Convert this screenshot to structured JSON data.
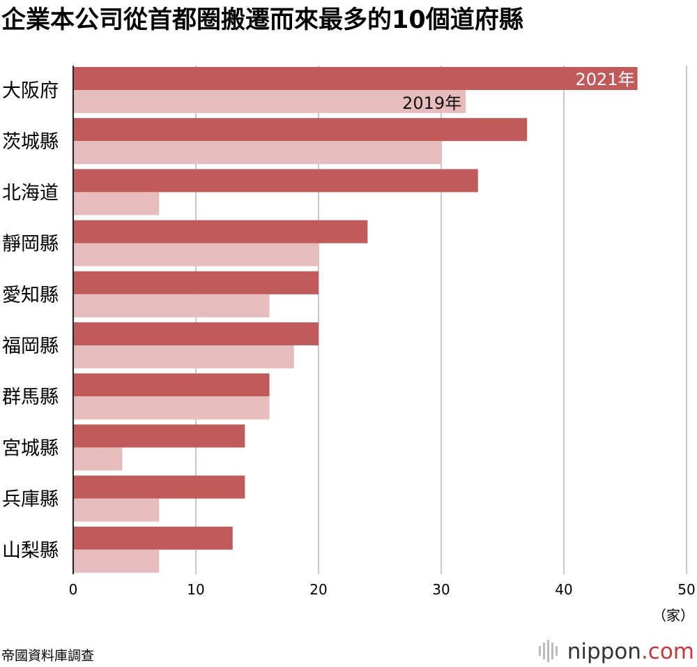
{
  "title": "企業本公司從首都圈搬遷而來最多的10個道府縣",
  "source": "帝國資料庫調查",
  "brand": {
    "name": "nippon",
    "suffix": ".com",
    "dot_color": "#c0393b"
  },
  "chart_data": {
    "type": "bar",
    "orientation": "horizontal",
    "categories": [
      "大阪府",
      "茨城縣",
      "北海道",
      "靜岡縣",
      "愛知縣",
      "福岡縣",
      "群馬縣",
      "宮城縣",
      "兵庫縣",
      "山梨縣"
    ],
    "series": [
      {
        "name": "2021年",
        "color": "#c05b5b",
        "values": [
          46,
          37,
          33,
          24,
          20,
          20,
          16,
          14,
          14,
          13
        ]
      },
      {
        "name": "2019年",
        "color": "#e6bcbc",
        "values": [
          32,
          30,
          7,
          20,
          16,
          18,
          16,
          4,
          7,
          7
        ]
      }
    ],
    "xlim": [
      0,
      50
    ],
    "xticks": [
      0,
      10,
      20,
      30,
      40,
      50
    ],
    "xunit": "（家）",
    "grid": true,
    "legend": "in-bar labels on first category"
  }
}
